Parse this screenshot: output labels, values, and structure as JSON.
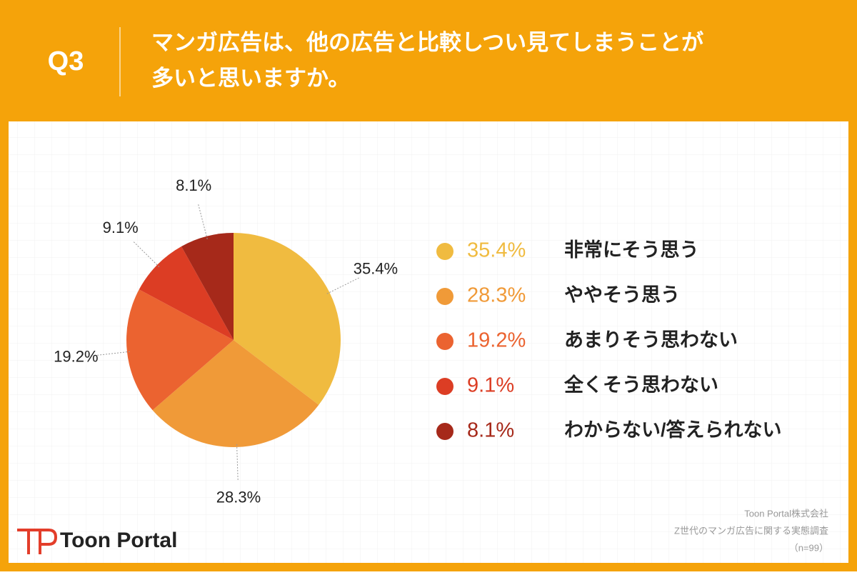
{
  "header": {
    "label": "Q3",
    "title_lines": [
      "マンガ広告は、他の広告と比較しつい見てしまうことが",
      "多いと思いますか。"
    ]
  },
  "chart_data": {
    "type": "pie",
    "categories": [
      "非常にそう思う",
      "ややそう思う",
      "あまりそう思わない",
      "全くそう思わない",
      "わからない/答えられない"
    ],
    "values": [
      35.4,
      28.3,
      19.2,
      9.1,
      8.1
    ],
    "value_labels": [
      "35.4%",
      "28.3%",
      "19.2%",
      "9.1%",
      "8.1%"
    ],
    "colors": [
      "#f0bb40",
      "#f09a38",
      "#eb6330",
      "#dc3d24",
      "#a6291a"
    ],
    "legend": "right"
  },
  "footer": {
    "logo": "Toon Portal",
    "source_lines": [
      "Toon Portal株式会社",
      "Z世代のマンガ広告に関する実態調査",
      "（n=99）"
    ]
  }
}
